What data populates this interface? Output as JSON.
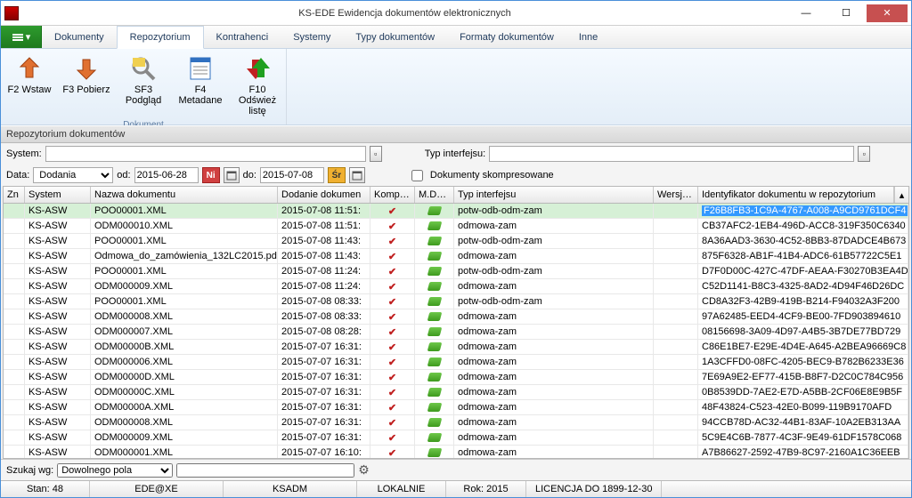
{
  "window": {
    "title": "KS-EDE Ewidencja dokumentów elektronicznych"
  },
  "menu": {
    "tabs": [
      "Dokumenty",
      "Repozytorium",
      "Kontrahenci",
      "Systemy",
      "Typy dokumentów",
      "Formaty dokumentów",
      "Inne"
    ],
    "active_index": 1
  },
  "ribbon": {
    "group_label": "Dokument",
    "items": [
      {
        "label": "F2 Wstaw"
      },
      {
        "label": "F3 Pobierz"
      },
      {
        "label": "SF3 Podgląd"
      },
      {
        "label": "F4 Metadane"
      },
      {
        "label": "F10 Odśwież listę"
      }
    ]
  },
  "panel": {
    "title": "Repozytorium dokumentów"
  },
  "filters": {
    "system_label": "System:",
    "typ_label": "Typ interfejsu:",
    "data_label": "Data:",
    "data_select": "Dodania",
    "od_label": "od:",
    "od_value": "2015-06-28",
    "ni_label": "Ni",
    "do_label": "do:",
    "do_value": "2015-07-08",
    "sr_label": "Śr",
    "komp_label": "Dokumenty skompresowane"
  },
  "columns": [
    "Zn",
    "System",
    "Nazwa dokumentu",
    "Dodanie dokumen",
    "Kompres",
    "M.Dane",
    "Typ interfejsu",
    "Wersja in",
    "Identyfikator dokumentu w repozytorium"
  ],
  "rows": [
    {
      "sys": "KS-ASW",
      "name": "POO00001.XML",
      "date": "2015-07-08 11:51:",
      "typ": "potw-odb-odm-zam",
      "id": "F26B8FB3-1C9A-4767-A008-A9CD9761DCF4",
      "sel": true
    },
    {
      "sys": "KS-ASW",
      "name": "ODM000010.XML",
      "date": "2015-07-08 11:51:",
      "typ": "odmowa-zam",
      "id": "CB37AFC2-1EB4-496D-ACC8-319F350C6340"
    },
    {
      "sys": "KS-ASW",
      "name": "POO00001.XML",
      "date": "2015-07-08 11:43:",
      "typ": "potw-odb-odm-zam",
      "id": "8A36AAD3-3630-4C52-8BB3-87DADCE4B673"
    },
    {
      "sys": "KS-ASW",
      "name": "Odmowa_do_zamówienia_132LC2015.pdf",
      "date": "2015-07-08 11:43:",
      "typ": "odmowa-zam",
      "id": "875F6328-AB1F-41B4-ADC6-61B57722C5E1"
    },
    {
      "sys": "KS-ASW",
      "name": "POO00001.XML",
      "date": "2015-07-08 11:24:",
      "typ": "potw-odb-odm-zam",
      "id": "D7F0D00C-427C-47DF-AEAA-F30270B3EA4D"
    },
    {
      "sys": "KS-ASW",
      "name": "ODM000009.XML",
      "date": "2015-07-08 11:24:",
      "typ": "odmowa-zam",
      "id": "C52D1141-B8C3-4325-8AD2-4D94F46D26DC"
    },
    {
      "sys": "KS-ASW",
      "name": "POO00001.XML",
      "date": "2015-07-08 08:33:",
      "typ": "potw-odb-odm-zam",
      "id": "CD8A32F3-42B9-419B-B214-F94032A3F200"
    },
    {
      "sys": "KS-ASW",
      "name": "ODM000008.XML",
      "date": "2015-07-08 08:33:",
      "typ": "odmowa-zam",
      "id": "97A62485-EED4-4CF9-BE00-7FD903894610"
    },
    {
      "sys": "KS-ASW",
      "name": "ODM000007.XML",
      "date": "2015-07-08 08:28:",
      "typ": "odmowa-zam",
      "id": "08156698-3A09-4D97-A4B5-3B7DE77BD729"
    },
    {
      "sys": "KS-ASW",
      "name": "ODM00000B.XML",
      "date": "2015-07-07 16:31:",
      "typ": "odmowa-zam",
      "id": "C86E1BE7-E29E-4D4E-A645-A2BEA96669C8"
    },
    {
      "sys": "KS-ASW",
      "name": "ODM000006.XML",
      "date": "2015-07-07 16:31:",
      "typ": "odmowa-zam",
      "id": "1A3CFFD0-08FC-4205-BEC9-B782B6233E36"
    },
    {
      "sys": "KS-ASW",
      "name": "ODM00000D.XML",
      "date": "2015-07-07 16:31:",
      "typ": "odmowa-zam",
      "id": "7E69A9E2-EF77-415B-B8F7-D2C0C784C956"
    },
    {
      "sys": "KS-ASW",
      "name": "ODM00000C.XML",
      "date": "2015-07-07 16:31:",
      "typ": "odmowa-zam",
      "id": "0B8539DD-7AE2-E7D-A5BB-2CF06E8E9B5F"
    },
    {
      "sys": "KS-ASW",
      "name": "ODM00000A.XML",
      "date": "2015-07-07 16:31:",
      "typ": "odmowa-zam",
      "id": "48F43824-C523-42E0-B099-119B9170AFD"
    },
    {
      "sys": "KS-ASW",
      "name": "ODM000008.XML",
      "date": "2015-07-07 16:31:",
      "typ": "odmowa-zam",
      "id": "94CCB78D-AC32-44B1-83AF-10A2EB313AA"
    },
    {
      "sys": "KS-ASW",
      "name": "ODM000009.XML",
      "date": "2015-07-07 16:31:",
      "typ": "odmowa-zam",
      "id": "5C9E4C6B-7877-4C3F-9E49-61DF1578C068"
    },
    {
      "sys": "KS-ASW",
      "name": "ODM000001.XML",
      "date": "2015-07-07 16:10:",
      "typ": "odmowa-zam",
      "id": "A7B86627-2592-47B9-8C97-2160A1C36EEB"
    }
  ],
  "search": {
    "label": "Szukaj wg:",
    "option": "Dowolnego pola"
  },
  "status": {
    "stan": "Stan: 48",
    "ede": "EDE@XE",
    "user": "KSADM",
    "mode": "LOKALNIE",
    "rok": "Rok: 2015",
    "lic": "LICENCJA DO 1899-12-30"
  }
}
